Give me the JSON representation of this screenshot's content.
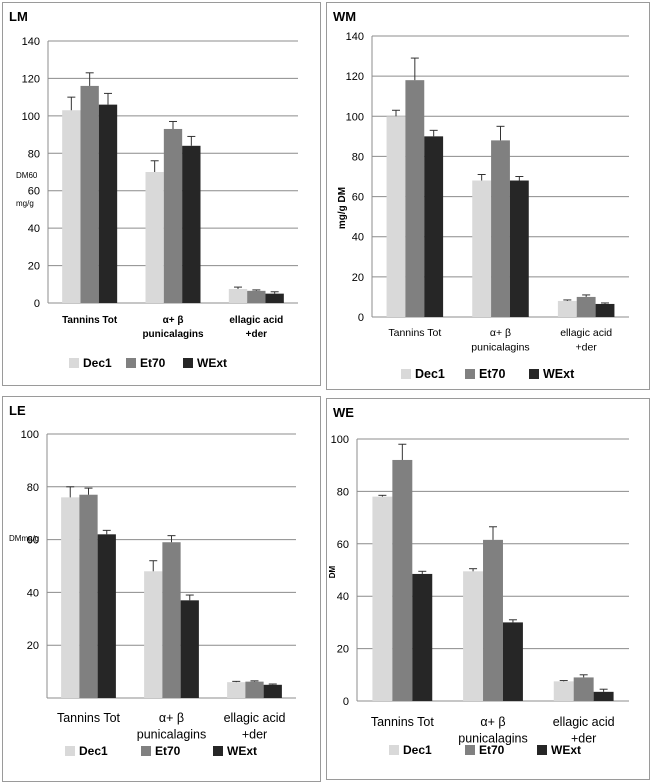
{
  "chart_data": [
    {
      "panel": "LM",
      "type": "bar",
      "ylabel": "DM60 mg/g",
      "ylim": [
        0,
        140
      ],
      "yticks": [
        "0",
        "20",
        "40",
        "60",
        "80",
        "100",
        "120",
        "140"
      ],
      "categories": [
        "Tannins Tot",
        "α+ β punicalagins",
        "ellagic acid +der"
      ],
      "series": [
        {
          "name": "Dec1",
          "color": "#d9d9d9",
          "values": [
            103,
            70,
            7.5
          ],
          "errors": [
            7,
            6,
            1
          ]
        },
        {
          "name": "Et70",
          "color": "#808080",
          "values": [
            116,
            93,
            6.5
          ],
          "errors": [
            7,
            4,
            0.5
          ]
        },
        {
          "name": "WExt",
          "color": "#262626",
          "values": [
            106,
            84,
            5
          ],
          "errors": [
            6,
            5,
            1
          ]
        }
      ]
    },
    {
      "panel": "WM",
      "type": "bar",
      "ylabel": "mg/g DM",
      "ylim": [
        0,
        140
      ],
      "yticks": [
        "0",
        "20",
        "40",
        "60",
        "80",
        "100",
        "120",
        "140"
      ],
      "categories": [
        "Tannins Tot",
        "α+ β punicalagins",
        "ellagic acid +der"
      ],
      "series": [
        {
          "name": "Dec1",
          "color": "#d9d9d9",
          "values": [
            100,
            68,
            8
          ],
          "errors": [
            3,
            3,
            0.5
          ]
        },
        {
          "name": "Et70",
          "color": "#808080",
          "values": [
            118,
            88,
            10
          ],
          "errors": [
            11,
            7,
            1
          ]
        },
        {
          "name": "WExt",
          "color": "#262626",
          "values": [
            90,
            68,
            6.5
          ],
          "errors": [
            3,
            2,
            0.5
          ]
        }
      ]
    },
    {
      "panel": "LE",
      "type": "bar",
      "ylabel": "DMmg/g",
      "ylim": [
        0,
        100
      ],
      "yticks": [
        "",
        "20",
        "40",
        "60",
        "80",
        "100"
      ],
      "categories": [
        "Tannins Tot",
        "α+ β punicalagins",
        "ellagic acid +der"
      ],
      "series": [
        {
          "name": "Dec1",
          "color": "#d9d9d9",
          "values": [
            76,
            48,
            6
          ],
          "errors": [
            4,
            4,
            0.3
          ]
        },
        {
          "name": "Et70",
          "color": "#808080",
          "values": [
            77,
            59,
            6.2
          ],
          "errors": [
            2.5,
            2.5,
            0.3
          ]
        },
        {
          "name": "WExt",
          "color": "#262626",
          "values": [
            62,
            37,
            5
          ],
          "errors": [
            1.5,
            2,
            0.3
          ]
        }
      ]
    },
    {
      "panel": "WE",
      "type": "bar",
      "ylabel": "DM",
      "ylim": [
        0,
        100
      ],
      "yticks": [
        "0",
        "20",
        "40",
        "60",
        "80",
        "100"
      ],
      "categories": [
        "Tannins Tot",
        "α+ β punicalagins",
        "ellagic acid +der"
      ],
      "series": [
        {
          "name": "Dec1",
          "color": "#d9d9d9",
          "values": [
            78,
            49.5,
            7.5
          ],
          "errors": [
            0.5,
            1,
            0.3
          ]
        },
        {
          "name": "Et70",
          "color": "#808080",
          "values": [
            92,
            61.5,
            9
          ],
          "errors": [
            6,
            5,
            1
          ]
        },
        {
          "name": "WExt",
          "color": "#262626",
          "values": [
            48.5,
            30,
            3.5
          ],
          "errors": [
            1,
            1,
            1
          ]
        }
      ]
    }
  ]
}
